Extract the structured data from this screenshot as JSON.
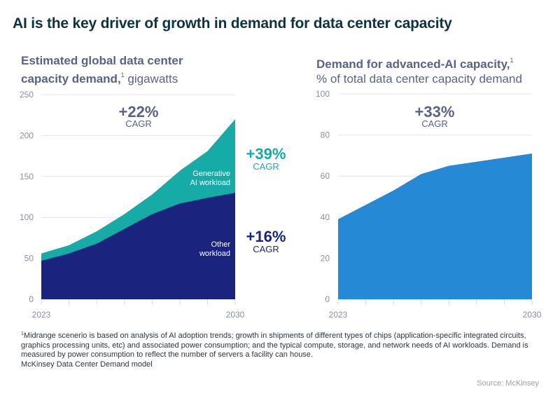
{
  "title": "AI is the key driver of growth in demand for data center capacity",
  "left_subtitle": {
    "bold": "Estimated global data center capacity demand,",
    "sup": "1",
    "normal": " gigawatts"
  },
  "right_subtitle": {
    "bold": "Demand for advanced-AI capacity,",
    "sup": "1",
    "normal": "% of total data center capacity demand"
  },
  "colors": {
    "navy": "#1a237e",
    "teal": "#17aba7",
    "blue": "#2589d5",
    "cagr_total": "#5b6384",
    "grid": "#e3e4ec"
  },
  "chart_data": [
    {
      "type": "area",
      "stacked": true,
      "title": "Estimated global data center capacity demand, gigawatts",
      "x": [
        2023,
        2024,
        2025,
        2026,
        2027,
        2028,
        2029,
        2030
      ],
      "x_tick_labels": [
        "2023",
        "2030"
      ],
      "y_ticks": [
        0,
        50,
        100,
        150,
        200,
        250
      ],
      "ylim": [
        0,
        250
      ],
      "grid": true,
      "series": [
        {
          "name": "Other workload",
          "label_lines": [
            "Other",
            "workload"
          ],
          "values": [
            47,
            56,
            68,
            86,
            104,
            117,
            124,
            130
          ]
        },
        {
          "name": "Generative AI workload",
          "label_lines": [
            "Generative",
            "AI workload"
          ],
          "values": [
            9,
            10,
            15,
            18,
            24,
            40,
            57,
            90
          ]
        }
      ],
      "totals": [
        56,
        66,
        83,
        104,
        128,
        157,
        181,
        220
      ],
      "annotations": [
        {
          "value": "+22%",
          "label": "CAGR",
          "refers_to": "total"
        },
        {
          "value": "+39%",
          "label": "CAGR",
          "refers_to": "Generative AI workload"
        },
        {
          "value": "+16%",
          "label": "CAGR",
          "refers_to": "Other workload"
        }
      ]
    },
    {
      "type": "area",
      "title": "Demand for advanced-AI capacity, % of total data center capacity demand",
      "x": [
        2023,
        2024,
        2025,
        2026,
        2027,
        2028,
        2029,
        2030
      ],
      "x_tick_labels": [
        "2023",
        "2030"
      ],
      "y_ticks": [
        0,
        20,
        40,
        60,
        80,
        100
      ],
      "ylim": [
        0,
        100
      ],
      "grid": true,
      "series": [
        {
          "name": "Advanced-AI share",
          "values": [
            39,
            46,
            53,
            61,
            65,
            67,
            69,
            71
          ]
        }
      ],
      "annotations": [
        {
          "value": "+33%",
          "label": "CAGR",
          "refers_to": "total"
        }
      ]
    }
  ],
  "footnote": {
    "sup": "1",
    "text": "Midrange scenerio is based on analysis of AI adoption trends; growth in shipments of different types of chips (application-specific integrated circuits, graphics processing units, etc) and associated power consumption; and the typical compute, storage, and network needs of AI workloads. Demand is measured by power consumption to reflect the number of servers a facility can house.",
    "line2": "McKinsey Data Center Demand model"
  },
  "source": "Source: McKinsey"
}
